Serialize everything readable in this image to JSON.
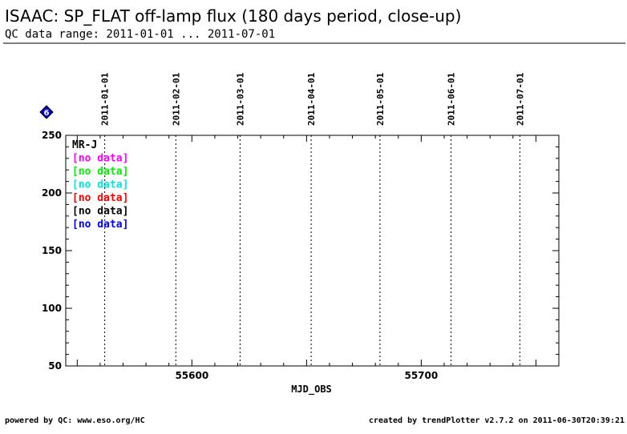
{
  "header": {
    "title": "ISAAC: SP_FLAT off-lamp flux (180 days period, close-up)",
    "subtitle": "QC data range: 2011-01-01 ... 2011-07-01"
  },
  "footer": {
    "left": "powered by QC: www.eso.org/HC",
    "right": "created by trendPlotter v2.7.2 on 2011-06-30T20:39:21"
  },
  "badge": {
    "text": "6",
    "color": "#0000cc",
    "icon": "diamond-icon"
  },
  "chart_data": {
    "type": "scatter",
    "xlabel": "MJD_OBS",
    "ylabel": "",
    "xlim": [
      55545,
      55760
    ],
    "ylim": [
      50,
      250
    ],
    "xticks_major": [
      55600,
      55700
    ],
    "xticks_major_labels": [
      "55600",
      "55700"
    ],
    "yticks_major": [
      50,
      100,
      150,
      200,
      250
    ],
    "yticks_major_labels": [
      "50",
      "100",
      "150",
      "200",
      "250"
    ],
    "grid": false,
    "date_markers": [
      {
        "label": "2011-01-01",
        "mjd": 55562
      },
      {
        "label": "2011-02-01",
        "mjd": 55593
      },
      {
        "label": "2011-03-01",
        "mjd": 55621
      },
      {
        "label": "2011-04-01",
        "mjd": 55652
      },
      {
        "label": "2011-05-01",
        "mjd": 55682
      },
      {
        "label": "2011-06-01",
        "mjd": 55713
      },
      {
        "label": "2011-07-01",
        "mjd": 55743
      }
    ],
    "legend": {
      "placement": "top-left",
      "heading": "MR-J",
      "entries": [
        {
          "text": "[no data]",
          "color": "#ff00ff"
        },
        {
          "text": "[no data]",
          "color": "#00ee00"
        },
        {
          "text": "[no data]",
          "color": "#00e5e5"
        },
        {
          "text": "[no data]",
          "color": "#ff0000"
        },
        {
          "text": "[no data]",
          "color": "#000000"
        },
        {
          "text": "[no data]",
          "color": "#0000ff"
        }
      ]
    },
    "series": []
  }
}
